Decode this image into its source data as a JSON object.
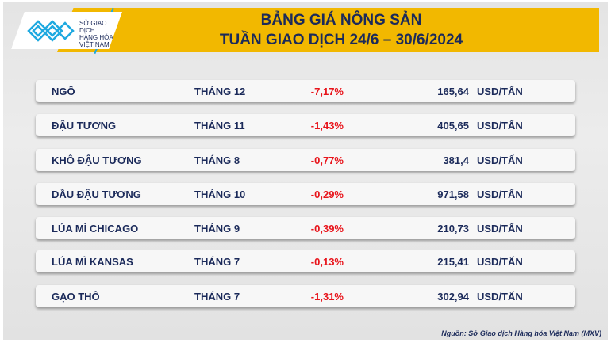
{
  "header": {
    "logo_text": [
      "SỞ GIAO DỊCH",
      "HÀNG HÓA",
      "VIỆT NAM"
    ],
    "title_line1": "BẢNG GIÁ NÔNG SẢN",
    "title_line2": "TUẦN GIAO DỊCH 24/6 – 30/6/2024"
  },
  "rows": [
    {
      "name": "NGÔ",
      "month": "THÁNG 12",
      "change": "-7,17%",
      "price": "165,64",
      "unit": "USD/TẤN"
    },
    {
      "name": "ĐẬU TƯƠNG",
      "month": "THÁNG 11",
      "change": "-1,43%",
      "price": "405,65",
      "unit": "USD/TẤN"
    },
    {
      "name": "KHÔ ĐẬU TƯƠNG",
      "month": "THÁNG 8",
      "change": "-0,77%",
      "price": "381,4",
      "unit": "USD/TẤN"
    },
    {
      "name": "DẦU ĐẬU TƯƠNG",
      "month": "THÁNG 10",
      "change": "-0,29%",
      "price": "971,58",
      "unit": "USD/TẤN"
    },
    {
      "name": "LÚA MÌ CHICAGO",
      "month": "THÁNG 9",
      "change": "-0,39%",
      "price": "210,73",
      "unit": "USD/TẤN"
    },
    {
      "name": "LÚA MÌ KANSAS",
      "month": "THÁNG 7",
      "change": "-0,13%",
      "price": "215,41",
      "unit": "USD/TẤN"
    },
    {
      "name": "GẠO THÔ",
      "month": "THÁNG 7",
      "change": "-1,31%",
      "price": "302,94",
      "unit": "USD/TẤN"
    }
  ],
  "source": "Nguồn: Sở Giao dịch Hàng hóa Việt Nam (MXV)",
  "colors": {
    "accent": "#f2b800",
    "text": "#1b2a5a",
    "negative": "#e8141b",
    "logo": "#1ea9e0"
  }
}
